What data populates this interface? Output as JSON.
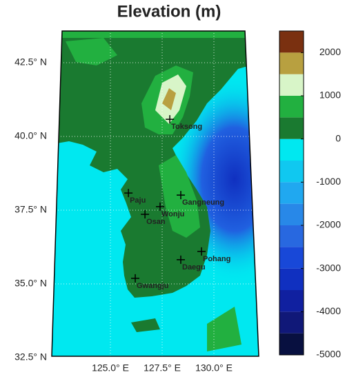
{
  "title": "Elevation (m)",
  "map": {
    "lat_ticks": [
      {
        "value": 42.5,
        "label": "42.5° N"
      },
      {
        "value": 40.0,
        "label": "40.0° N"
      },
      {
        "value": 37.5,
        "label": "37.5° N"
      },
      {
        "value": 35.0,
        "label": "35.0° N"
      },
      {
        "value": 32.5,
        "label": "32.5° N"
      }
    ],
    "lon_ticks": [
      {
        "value": 125.0,
        "label": "125.0° E"
      },
      {
        "value": 127.5,
        "label": "127.5° E"
      },
      {
        "value": 130.0,
        "label": "130.0° E"
      }
    ],
    "stations": [
      {
        "name": "Toksong",
        "lat": 40.58,
        "lon": 127.87
      },
      {
        "name": "Paju",
        "lat": 38.08,
        "lon": 125.87
      },
      {
        "name": "Gangneung",
        "lat": 38.01,
        "lon": 128.4
      },
      {
        "name": "Wonju",
        "lat": 37.62,
        "lon": 127.4
      },
      {
        "name": "Osan",
        "lat": 37.36,
        "lon": 126.67
      },
      {
        "name": "Pohang",
        "lat": 36.1,
        "lon": 129.4
      },
      {
        "name": "Daegu",
        "lat": 35.82,
        "lon": 128.4
      },
      {
        "name": "Gwangju",
        "lat": 35.19,
        "lon": 126.2
      }
    ]
  },
  "colorbar": {
    "lim": [
      -5000,
      2500
    ],
    "ticks": [
      2000,
      1000,
      0,
      -1000,
      -2000,
      -3000,
      -4000,
      -5000
    ],
    "colors": [
      "#081040",
      "#101878",
      "#1020a0",
      "#1030c0",
      "#1848d8",
      "#2868e0",
      "#2888e8",
      "#20a8f0",
      "#10c8f0",
      "#00e8f0",
      "#1a7a30",
      "#22b040",
      "#d8f5c8",
      "#b8a040",
      "#7a3010"
    ]
  }
}
